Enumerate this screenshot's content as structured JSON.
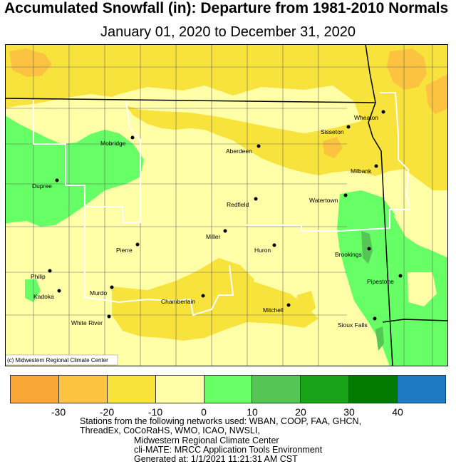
{
  "title": "Accumulated Snowfall (in): Departure from 1981-2010 Normals",
  "subtitle": "January 01, 2020 to December 31, 2020",
  "copyright": "(c) Midwestern Regional Climate Center",
  "cities": [
    "Wheaton",
    "Sisseton",
    "Mobridge",
    "Aberdeen",
    "Milbank",
    "Dupree",
    "Watertown",
    "Redfield",
    "Miller",
    "Huron",
    "Brookings",
    "Pierre",
    "Pipestone",
    "Philip",
    "Murdo",
    "Kadoka",
    "Chamberlain",
    "Mitchell",
    "White River",
    "Sioux Falls"
  ],
  "legend": {
    "colors": [
      "#f9a838",
      "#fcc340",
      "#f8e23c",
      "#ffffa8",
      "#66ff66",
      "#55c655",
      "#19a319",
      "#007a00",
      "#1e7ac2"
    ],
    "ticks": [
      "-30",
      "-20",
      "-10",
      "0",
      "10",
      "20",
      "30",
      "40"
    ]
  },
  "credits": {
    "line1": "Stations from the following networks used: WBAN, COOP, FAA, GHCN,",
    "line2": "ThreadEx, CoCoRaHS, WMO, ICAO, NWSLI,",
    "line3": "Midwestern Regional Climate Center",
    "line4": "cli-MATE: MRCC Application Tools Environment",
    "line5": "Generated at: 1/1/2021 11:21:31 AM CST"
  }
}
